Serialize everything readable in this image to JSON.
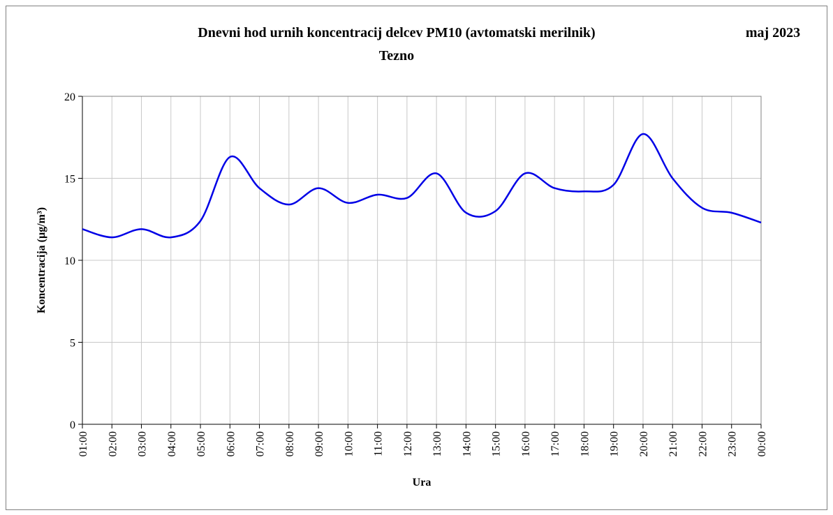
{
  "chart_data": {
    "type": "line",
    "title": "Dnevni hod urnih koncentracij  delcev PM10 (avtomatski merilnik)",
    "subtitle": "Tezno",
    "annotation": "maj 2023",
    "x_label": "Ura",
    "y_label": "Koncentracija (µg/m³)",
    "categories": [
      "01:00",
      "02:00",
      "03:00",
      "04:00",
      "05:00",
      "06:00",
      "07:00",
      "08:00",
      "09:00",
      "10:00",
      "11:00",
      "12:00",
      "13:00",
      "14:00",
      "15:00",
      "16:00",
      "17:00",
      "18:00",
      "19:00",
      "20:00",
      "21:00",
      "22:00",
      "23:00",
      "00:00"
    ],
    "series": [
      {
        "name": "PM10",
        "color": "#0000e6",
        "values": [
          11.9,
          11.4,
          11.9,
          11.4,
          12.4,
          16.3,
          14.4,
          13.4,
          14.4,
          13.5,
          14.0,
          13.8,
          15.3,
          12.9,
          13.0,
          15.3,
          14.4,
          14.2,
          14.6,
          17.7,
          15.0,
          13.2,
          12.9,
          12.3
        ]
      }
    ],
    "ylim": [
      0,
      20
    ],
    "yticks": [
      0,
      5,
      10,
      15,
      20
    ],
    "grid": true
  }
}
